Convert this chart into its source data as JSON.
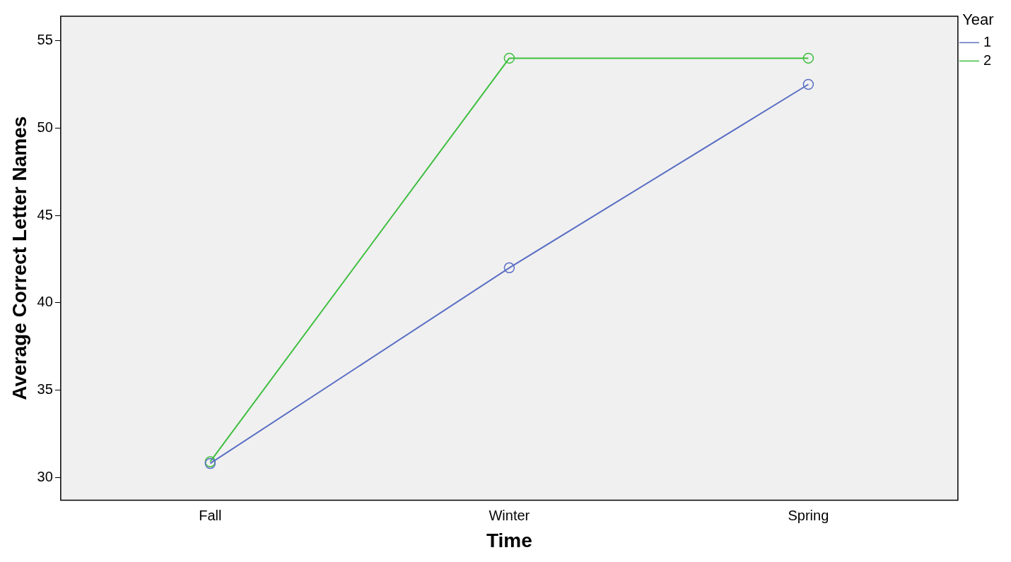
{
  "chart_data": {
    "type": "line",
    "xlabel": "Time",
    "ylabel": "Average Correct Letter Names",
    "legend_title": "Year",
    "categories": [
      "Fall",
      "Winter",
      "Spring"
    ],
    "series": [
      {
        "name": "1",
        "color": "#5b6fc4",
        "values": [
          30.8,
          42.0,
          52.5
        ]
      },
      {
        "name": "2",
        "color": "#3fbf3f",
        "values": [
          30.9,
          54.0,
          54.0
        ]
      }
    ],
    "ylim": [
      28.7,
      56.4
    ],
    "yticks": [
      30,
      35,
      40,
      45,
      50,
      55
    ],
    "grid": false,
    "legend": "top right",
    "marker": "circle",
    "line_style": "solid"
  }
}
